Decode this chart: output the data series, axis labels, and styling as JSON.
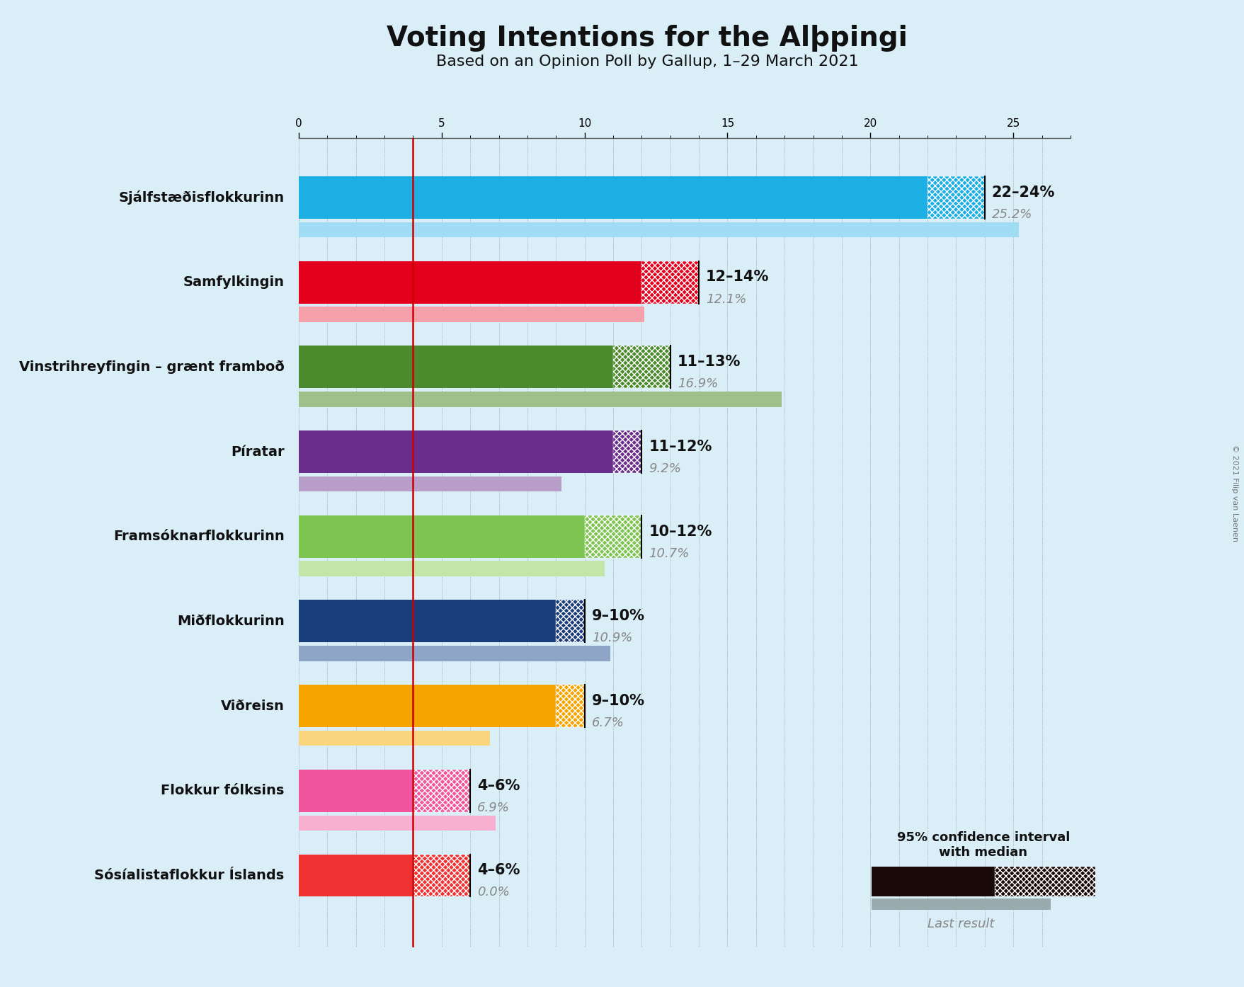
{
  "title": "Voting Intentions for the Alþpingi",
  "subtitle": "Based on an Opinion Poll by Gallup, 1–29 March 2021",
  "copyright": "© 2021 Filip van Laenen",
  "background_color": "#daeef8",
  "parties": [
    {
      "name": "Sjálfstæðisflokkurinn",
      "color": "#1daee3",
      "light_color": "#a0ddf5",
      "ci_low": 22,
      "ci_high": 24,
      "last_result": 25.2,
      "label": "22–24%",
      "last_label": "25.2%"
    },
    {
      "name": "Samfylkingin",
      "color": "#e4001c",
      "light_color": "#f5a0ab",
      "ci_low": 12,
      "ci_high": 14,
      "last_result": 12.1,
      "label": "12–14%",
      "last_label": "12.1%"
    },
    {
      "name": "Vinstrihreyfingin – grænt framboð",
      "color": "#4c8a2e",
      "light_color": "#9ec08a",
      "ci_low": 11,
      "ci_high": 13,
      "last_result": 16.9,
      "label": "11–13%",
      "last_label": "16.9%"
    },
    {
      "name": "Píratar",
      "color": "#6b2d8b",
      "light_color": "#b89ec8",
      "ci_low": 11,
      "ci_high": 12,
      "last_result": 9.2,
      "label": "11–12%",
      "last_label": "9.2%"
    },
    {
      "name": "Framsóknarflokkurinn",
      "color": "#7dc450",
      "light_color": "#c2e5a8",
      "ci_low": 10,
      "ci_high": 12,
      "last_result": 10.7,
      "label": "10–12%",
      "last_label": "10.7%"
    },
    {
      "name": "Miðflokkurinn",
      "color": "#1a3d7c",
      "light_color": "#8fa5c8",
      "ci_low": 9,
      "ci_high": 10,
      "last_result": 10.9,
      "label": "9–10%",
      "last_label": "10.9%"
    },
    {
      "name": "Viðreisn",
      "color": "#f5a400",
      "light_color": "#fad580",
      "ci_low": 9,
      "ci_high": 10,
      "last_result": 6.7,
      "label": "9–10%",
      "last_label": "6.7%"
    },
    {
      "name": "Flokkur fólksins",
      "color": "#f0559e",
      "light_color": "#f8b0d1",
      "ci_low": 4,
      "ci_high": 6,
      "last_result": 6.9,
      "label": "4–6%",
      "last_label": "6.9%"
    },
    {
      "name": "Sósíalistaflokkur Íslands",
      "color": "#f03232",
      "light_color": "#f8a0a0",
      "ci_low": 4,
      "ci_high": 6,
      "last_result": 0.0,
      "label": "4–6%",
      "last_label": "0.0%"
    }
  ],
  "threshold_line": 4.0,
  "x_max": 27,
  "x_ticks_minor": 1,
  "x_ticks_major": 5
}
